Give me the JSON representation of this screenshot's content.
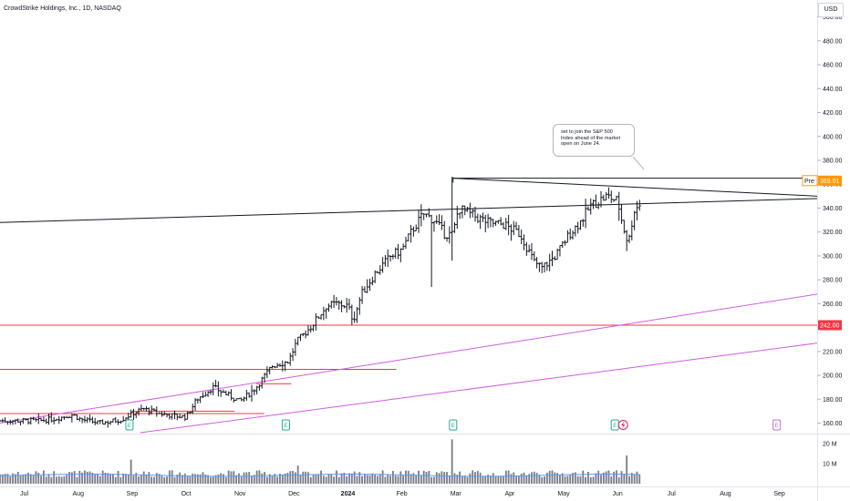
{
  "header": {
    "title": "CrowdStrike Holdings, Inc., 1D, NASDAQ",
    "currency": "USD"
  },
  "annotation": {
    "lines": [
      "set to join the S&P 500",
      "Index ahead of the market",
      "open on June 24."
    ]
  },
  "colors": {
    "price": "#131722",
    "trendline": "#131722",
    "support": "#f23645",
    "channel": "#d05ce3",
    "volume": "#787b86",
    "volume_ma": "#5b9cf6",
    "earnings": "#22ab94",
    "earnings_future": "#c56bd8",
    "last_price_tag": "#ff9800",
    "support_tag": "#f23645"
  },
  "chart_data": {
    "type": "ohlc",
    "symbol": "CrowdStrike Holdings, Inc.",
    "interval": "1D",
    "exchange": "NASDAQ",
    "y_axis": {
      "ticks": [
        160,
        180,
        200,
        220,
        240,
        260,
        280,
        300,
        320,
        340,
        360,
        380,
        400,
        420,
        440,
        460,
        480,
        500
      ],
      "range": [
        152,
        502
      ]
    },
    "x_axis": {
      "ticks": [
        "Jul",
        "Aug",
        "Sep",
        "Oct",
        "Nov",
        "Dec",
        "2024",
        "Feb",
        "Mar",
        "Apr",
        "May",
        "Jun",
        "Jul",
        "Aug",
        "Sep"
      ],
      "months_from_jul_2023": [
        0,
        1,
        2,
        3,
        4,
        5,
        6,
        7,
        8,
        9,
        10,
        11,
        12,
        13,
        14
      ],
      "range_months": [
        -0.45,
        14.7
      ]
    },
    "price_keypoints": [
      [
        -0.45,
        162
      ],
      [
        0.3,
        162
      ],
      [
        0.6,
        164
      ],
      [
        0.9,
        167
      ],
      [
        1.05,
        163
      ],
      [
        1.4,
        160
      ],
      [
        1.8,
        163
      ],
      [
        2.0,
        168
      ],
      [
        2.2,
        172
      ],
      [
        2.5,
        168
      ],
      [
        2.8,
        166
      ],
      [
        3.0,
        165
      ],
      [
        3.2,
        180
      ],
      [
        3.5,
        190
      ],
      [
        3.8,
        183
      ],
      [
        4.0,
        178
      ],
      [
        4.3,
        190
      ],
      [
        4.6,
        208
      ],
      [
        4.9,
        212
      ],
      [
        5.05,
        228
      ],
      [
        5.3,
        240
      ],
      [
        5.6,
        258
      ],
      [
        5.8,
        260
      ],
      [
        6.0,
        258
      ],
      [
        6.1,
        246
      ],
      [
        6.25,
        268
      ],
      [
        6.5,
        285
      ],
      [
        6.8,
        300
      ],
      [
        7.0,
        305
      ],
      [
        7.2,
        322
      ],
      [
        7.4,
        335
      ],
      [
        7.6,
        330
      ],
      [
        7.8,
        318
      ],
      [
        7.95,
        318
      ],
      [
        8.05,
        340
      ],
      [
        8.3,
        334
      ],
      [
        8.6,
        328
      ],
      [
        8.9,
        326
      ],
      [
        9.2,
        318
      ],
      [
        9.45,
        295
      ],
      [
        9.6,
        290
      ],
      [
        9.85,
        300
      ],
      [
        10.1,
        318
      ],
      [
        10.3,
        328
      ],
      [
        10.5,
        342
      ],
      [
        10.8,
        350
      ],
      [
        11.0,
        346
      ],
      [
        11.1,
        325
      ],
      [
        11.2,
        310
      ],
      [
        11.3,
        338
      ],
      [
        11.45,
        345
      ]
    ],
    "spikes": [
      {
        "month": 7.55,
        "low": 274
      },
      {
        "month": 7.95,
        "high": 366,
        "low": 296
      },
      {
        "month": 11.15,
        "low": 304
      }
    ],
    "volume_axis": {
      "ticks": [
        "10 M",
        "20 M"
      ],
      "values": [
        10000000,
        20000000
      ]
    },
    "volume_spikes": [
      {
        "month": 2.0,
        "value": 12000000
      },
      {
        "month": 5.05,
        "value": 9000000
      },
      {
        "month": 7.95,
        "value": 22000000
      },
      {
        "month": 11.15,
        "value": 14000000
      }
    ],
    "price_tags": [
      {
        "label": "Pre",
        "value": "369.01",
        "price": 363
      },
      {
        "label": "",
        "value": "242.00",
        "price": 242
      }
    ],
    "earnings_markers": [
      {
        "label": "E",
        "month": 1.95,
        "future": false
      },
      {
        "label": "E",
        "month": 4.85,
        "future": false
      },
      {
        "label": "E",
        "month": 7.95,
        "future": false
      },
      {
        "label": "E",
        "month": 10.95,
        "future": false
      },
      {
        "label": "E",
        "month": 13.95,
        "future": true
      }
    ],
    "drawings": {
      "trendlines": [
        {
          "from": [
            -0.45,
            328
          ],
          "to": [
            14.7,
            348
          ]
        },
        {
          "from": [
            7.95,
            365
          ],
          "to": [
            14.7,
            365
          ]
        },
        {
          "from": [
            7.95,
            365
          ],
          "to": [
            14.7,
            350
          ]
        }
      ],
      "support_lines": [
        {
          "price": 242,
          "from": -0.45,
          "to": 14.7
        },
        {
          "price": 205,
          "from": -0.45,
          "to": 6.9
        },
        {
          "price": 193,
          "from": 4.3,
          "to": 4.95
        },
        {
          "price": 170,
          "from": 2.0,
          "to": 3.9
        },
        {
          "price": 168,
          "from": -0.45,
          "to": 4.45
        }
      ],
      "channel": [
        {
          "from": [
            -0.45,
            160
          ],
          "to": [
            14.7,
            268
          ]
        },
        {
          "from": [
            2.15,
            152
          ],
          "to": [
            14.7,
            227
          ]
        }
      ]
    }
  }
}
